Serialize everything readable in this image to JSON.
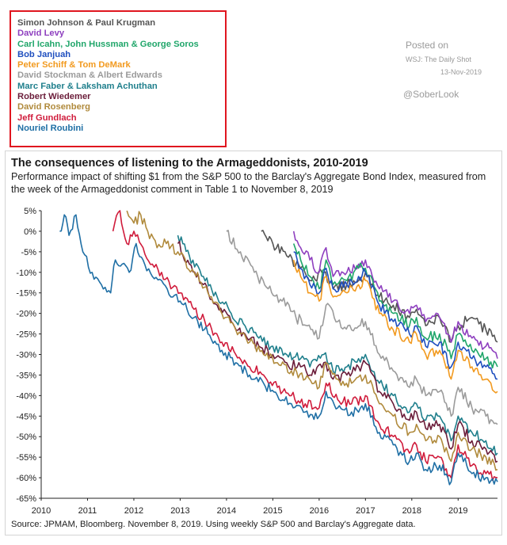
{
  "header": {
    "posted_label": "Posted on",
    "posted_source": "WSJ: The Daily Shot",
    "posted_date": "13-Nov-2019",
    "handle": "@SoberLook"
  },
  "title": "The consequences of listening to the Armageddonists, 2010-2019",
  "subtitle": "Performance impact of shifting $1 from the S&P 500 to the Barclay's Aggregate Bond Index, measured from the week of the Armageddonist comment in Table 1 to November 8, 2019",
  "source": "Source: JPMAM, Bloomberg. November 8, 2019. Using weekly S&P 500 and Barclay's Aggregate data.",
  "legend": [
    {
      "label": "Simon Johnson & Paul Krugman",
      "color": "#555555"
    },
    {
      "label": "David Levy",
      "color": "#8e3fbf"
    },
    {
      "label": "Carl Icahn, John Hussman & George Soros",
      "color": "#20a66a"
    },
    {
      "label": "Bob Janjuah",
      "color": "#1f4fbf"
    },
    {
      "label": "Peter Schiff & Tom DeMark",
      "color": "#f29a1f"
    },
    {
      "label": "David Stockman & Albert Edwards",
      "color": "#9b9b9b"
    },
    {
      "label": "Marc Faber & Laksham Achuthan",
      "color": "#1f7f8c"
    },
    {
      "label": "Robert Wiedemer",
      "color": "#6b1d3a"
    },
    {
      "label": "David Rosenberg",
      "color": "#b08a3c"
    },
    {
      "label": "Jeff Gundlach",
      "color": "#d01c3c"
    },
    {
      "label": "Nouriel Roubini",
      "color": "#1f6fa5"
    }
  ],
  "chart_data": {
    "type": "line",
    "xlim": [
      2010,
      2019.85
    ],
    "ylim": [
      -65,
      5
    ],
    "x_ticks": [
      "2010",
      "2011",
      "2012",
      "2013",
      "2014",
      "2015",
      "2016",
      "2017",
      "2018",
      "2019"
    ],
    "y_ticks": [
      "5%",
      "0%",
      "-5%",
      "-10%",
      "-15%",
      "-20%",
      "-25%",
      "-30%",
      "-35%",
      "-40%",
      "-45%",
      "-50%",
      "-55%",
      "-60%",
      "-65%"
    ],
    "grid": false,
    "series": [
      {
        "name": "Simon Johnson & Paul Krugman",
        "color": "#555555",
        "x": [
          2014.75,
          2015.0,
          2015.3,
          2015.6,
          2015.8,
          2016.1,
          2016.3,
          2016.6,
          2016.85,
          2017.0,
          2017.3,
          2017.6,
          2017.95,
          2018.1,
          2018.3,
          2018.6,
          2018.85,
          2019.0,
          2019.3,
          2019.6,
          2019.85
        ],
        "y": [
          0,
          -3,
          -6,
          -9,
          -12,
          -10,
          -14,
          -13,
          -12,
          -10,
          -16,
          -18,
          -21,
          -19,
          -23,
          -21,
          -27,
          -23,
          -21,
          -24,
          -27
        ]
      },
      {
        "name": "David Levy",
        "color": "#8e3fbf",
        "x": [
          2015.45,
          2015.6,
          2015.8,
          2016.0,
          2016.15,
          2016.3,
          2016.6,
          2016.85,
          2017.0,
          2017.3,
          2017.6,
          2017.95,
          2018.1,
          2018.3,
          2018.6,
          2018.85,
          2019.0,
          2019.3,
          2019.6,
          2019.85
        ],
        "y": [
          0,
          -4,
          -7,
          -10,
          -4,
          -11,
          -10,
          -8,
          -7,
          -14,
          -17,
          -20,
          -18,
          -22,
          -21,
          -27,
          -22,
          -26,
          -28,
          -31
        ]
      },
      {
        "name": "Carl Icahn, John Hussman & George Soros",
        "color": "#20a66a",
        "x": [
          2015.45,
          2015.6,
          2015.8,
          2016.0,
          2016.15,
          2016.3,
          2016.6,
          2016.85,
          2017.0,
          2017.3,
          2017.6,
          2017.95,
          2018.1,
          2018.3,
          2018.6,
          2018.85,
          2019.0,
          2019.3,
          2019.6,
          2019.85
        ],
        "y": [
          -3,
          -7,
          -11,
          -14,
          -7,
          -13,
          -12,
          -9,
          -9,
          -17,
          -20,
          -23,
          -21,
          -26,
          -25,
          -31,
          -25,
          -29,
          -31,
          -33
        ]
      },
      {
        "name": "Bob Janjuah",
        "color": "#1f4fbf",
        "x": [
          2015.45,
          2015.6,
          2015.8,
          2016.0,
          2016.15,
          2016.3,
          2016.6,
          2016.85,
          2017.0,
          2017.3,
          2017.6,
          2017.95,
          2018.1,
          2018.3,
          2018.6,
          2018.85,
          2019.0,
          2019.3,
          2019.6,
          2019.85
        ],
        "y": [
          -5,
          -9,
          -13,
          -15,
          -9,
          -14,
          -13,
          -11,
          -10,
          -18,
          -22,
          -25,
          -23,
          -28,
          -27,
          -33,
          -27,
          -31,
          -33,
          -36
        ]
      },
      {
        "name": "Peter Schiff & Tom DeMark",
        "color": "#f29a1f",
        "x": [
          2015.45,
          2015.6,
          2015.8,
          2016.0,
          2016.15,
          2016.3,
          2016.6,
          2016.85,
          2017.0,
          2017.3,
          2017.6,
          2017.95,
          2018.1,
          2018.3,
          2018.6,
          2018.85,
          2019.0,
          2019.3,
          2019.6,
          2019.85
        ],
        "y": [
          -7,
          -11,
          -15,
          -17,
          -11,
          -16,
          -15,
          -13,
          -12,
          -20,
          -24,
          -27,
          -25,
          -30,
          -29,
          -36,
          -29,
          -33,
          -36,
          -39
        ]
      },
      {
        "name": "David Stockman & Albert Edwards",
        "color": "#9b9b9b",
        "x": [
          2014.0,
          2014.3,
          2014.6,
          2014.9,
          2015.2,
          2015.5,
          2015.75,
          2016.0,
          2016.15,
          2016.4,
          2016.7,
          2017.0,
          2017.3,
          2017.6,
          2017.95,
          2018.1,
          2018.3,
          2018.6,
          2018.85,
          2019.0,
          2019.3,
          2019.6,
          2019.85
        ],
        "y": [
          0,
          -5,
          -10,
          -14,
          -17,
          -21,
          -23,
          -26,
          -18,
          -22,
          -24,
          -22,
          -30,
          -34,
          -38,
          -36,
          -40,
          -39,
          -45,
          -38,
          -43,
          -45,
          -47
        ]
      },
      {
        "name": "Marc Faber & Laksham Achuthan",
        "color": "#1f7f8c",
        "x": [
          2012.95,
          2013.2,
          2013.5,
          2013.8,
          2014.1,
          2014.4,
          2014.7,
          2015.0,
          2015.3,
          2015.6,
          2015.8,
          2016.1,
          2016.3,
          2016.6,
          2016.85,
          2017.0,
          2017.3,
          2017.6,
          2017.95,
          2018.1,
          2018.3,
          2018.6,
          2018.85,
          2019.0,
          2019.3,
          2019.6,
          2019.85
        ],
        "y": [
          -1,
          -6,
          -11,
          -16,
          -20,
          -23,
          -26,
          -28,
          -30,
          -31,
          -33,
          -30,
          -34,
          -33,
          -31,
          -30,
          -37,
          -40,
          -44,
          -42,
          -46,
          -45,
          -51,
          -45,
          -49,
          -51,
          -54
        ]
      },
      {
        "name": "Robert Wiedemer",
        "color": "#6b1d3a",
        "x": [
          2012.95,
          2013.2,
          2013.5,
          2013.8,
          2014.1,
          2014.4,
          2014.7,
          2015.0,
          2015.3,
          2015.6,
          2015.8,
          2016.1,
          2016.3,
          2016.6,
          2016.85,
          2017.0,
          2017.3,
          2017.6,
          2017.95,
          2018.1,
          2018.3,
          2018.6,
          2018.85,
          2019.0,
          2019.3,
          2019.6,
          2019.85
        ],
        "y": [
          -3,
          -8,
          -13,
          -18,
          -22,
          -25,
          -28,
          -30,
          -32,
          -33,
          -35,
          -32,
          -36,
          -35,
          -33,
          -32,
          -39,
          -42,
          -46,
          -44,
          -48,
          -47,
          -53,
          -47,
          -51,
          -53,
          -56
        ]
      },
      {
        "name": "David Rosenberg",
        "color": "#b08a3c",
        "x": [
          2011.85,
          2012.0,
          2012.15,
          2012.3,
          2012.5,
          2012.7,
          2012.95,
          2013.3,
          2013.6,
          2013.9,
          2014.2,
          2014.5,
          2014.8,
          2015.1,
          2015.4,
          2015.7,
          2016.0,
          2016.15,
          2016.4,
          2016.7,
          2017.0,
          2017.3,
          2017.6,
          2017.95,
          2018.1,
          2018.3,
          2018.6,
          2018.85,
          2019.0,
          2019.3,
          2019.6,
          2019.85
        ],
        "y": [
          5,
          2,
          4,
          0,
          -4,
          -3,
          -5,
          -10,
          -15,
          -20,
          -24,
          -27,
          -30,
          -32,
          -34,
          -36,
          -38,
          -32,
          -36,
          -37,
          -35,
          -42,
          -45,
          -49,
          -47,
          -51,
          -50,
          -56,
          -49,
          -53,
          -55,
          -58
        ]
      },
      {
        "name": "Jeff Gundlach",
        "color": "#d01c3c",
        "x": [
          2011.55,
          2011.7,
          2011.85,
          2012.0,
          2012.2,
          2012.4,
          2012.6,
          2012.8,
          2013.0,
          2013.3,
          2013.6,
          2013.9,
          2014.2,
          2014.5,
          2014.8,
          2015.1,
          2015.4,
          2015.7,
          2016.0,
          2016.15,
          2016.4,
          2016.7,
          2017.0,
          2017.3,
          2017.6,
          2017.95,
          2018.1,
          2018.3,
          2018.6,
          2018.85,
          2019.0,
          2019.3,
          2019.6,
          2019.85
        ],
        "y": [
          0,
          5,
          -3,
          0,
          -4,
          -8,
          -10,
          -14,
          -15,
          -19,
          -23,
          -27,
          -30,
          -33,
          -35,
          -38,
          -40,
          -42,
          -43,
          -37,
          -41,
          -42,
          -40,
          -47,
          -50,
          -54,
          -52,
          -56,
          -55,
          -60,
          -52,
          -57,
          -59,
          -60
        ]
      },
      {
        "name": "Nouriel Roubini",
        "color": "#1f6fa5",
        "x": [
          2010.4,
          2010.5,
          2010.6,
          2010.75,
          2010.9,
          2011.1,
          2011.3,
          2011.5,
          2011.6,
          2011.75,
          2011.9,
          2012.05,
          2012.2,
          2012.4,
          2012.6,
          2012.8,
          2013.0,
          2013.3,
          2013.6,
          2013.9,
          2014.2,
          2014.5,
          2014.8,
          2015.1,
          2015.4,
          2015.7,
          2016.0,
          2016.15,
          2016.4,
          2016.7,
          2017.0,
          2017.3,
          2017.6,
          2017.95,
          2018.1,
          2018.3,
          2018.6,
          2018.85,
          2019.0,
          2019.3,
          2019.6,
          2019.85
        ],
        "y": [
          0,
          4,
          -1,
          4,
          -5,
          -10,
          -13,
          -15,
          -7,
          -8,
          -10,
          -3,
          -7,
          -11,
          -12,
          -16,
          -17,
          -21,
          -25,
          -29,
          -32,
          -35,
          -37,
          -40,
          -42,
          -44,
          -45,
          -39,
          -43,
          -44,
          -42,
          -49,
          -52,
          -56,
          -54,
          -58,
          -57,
          -61,
          -54,
          -59,
          -60,
          -61
        ]
      }
    ]
  }
}
